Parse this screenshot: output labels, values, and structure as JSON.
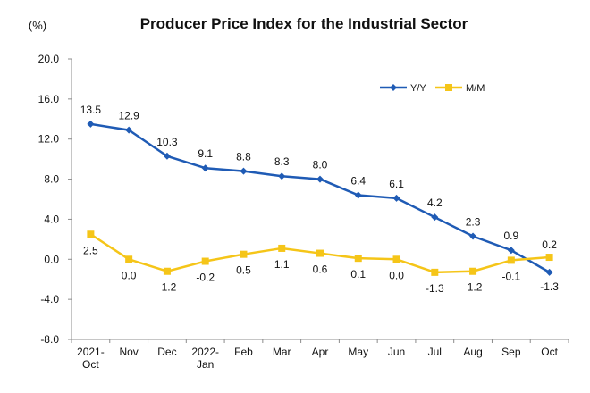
{
  "chart_data": {
    "type": "line",
    "title": "Producer Price Index for the Industrial Sector",
    "ylabel": "(%)",
    "ylim": [
      -8.0,
      20.0
    ],
    "yticks": [
      "20.0",
      "16.0",
      "12.0",
      "8.0",
      "4.0",
      "0.0",
      "-4.0",
      "-8.0"
    ],
    "ytick_values": [
      20,
      16,
      12,
      8,
      4,
      0,
      -4,
      -8
    ],
    "categories": [
      [
        "2021-",
        "Oct"
      ],
      [
        "Nov"
      ],
      [
        "Dec"
      ],
      [
        "2022-",
        "Jan"
      ],
      [
        "Feb"
      ],
      [
        "Mar"
      ],
      [
        "Apr"
      ],
      [
        "May"
      ],
      [
        "Jun"
      ],
      [
        "Jul"
      ],
      [
        "Aug"
      ],
      [
        "Sep"
      ],
      [
        "Oct"
      ]
    ],
    "series": [
      {
        "name": "Y/Y",
        "color": "#1f5bb5",
        "marker": "diamond",
        "values": [
          13.5,
          12.9,
          10.3,
          9.1,
          8.8,
          8.3,
          8.0,
          6.4,
          6.1,
          4.2,
          2.3,
          0.9,
          -1.3
        ],
        "labels": [
          "13.5",
          "12.9",
          "10.3",
          "9.1",
          "8.8",
          "8.3",
          "8.0",
          "6.4",
          "6.1",
          "4.2",
          "2.3",
          "0.9",
          "-1.3"
        ]
      },
      {
        "name": "M/M",
        "color": "#f5c518",
        "marker": "square",
        "values": [
          2.5,
          0.0,
          -1.2,
          -0.2,
          0.5,
          1.1,
          0.6,
          0.1,
          0.0,
          -1.3,
          -1.2,
          -0.1,
          0.2
        ],
        "labels": [
          "2.5",
          "0.0",
          "-1.2",
          "-0.2",
          "0.5",
          "1.1",
          "0.6",
          "0.1",
          "0.0",
          "-1.3",
          "-1.2",
          "-0.1",
          "0.2"
        ]
      }
    ],
    "grid": false,
    "legend": "top-right"
  }
}
